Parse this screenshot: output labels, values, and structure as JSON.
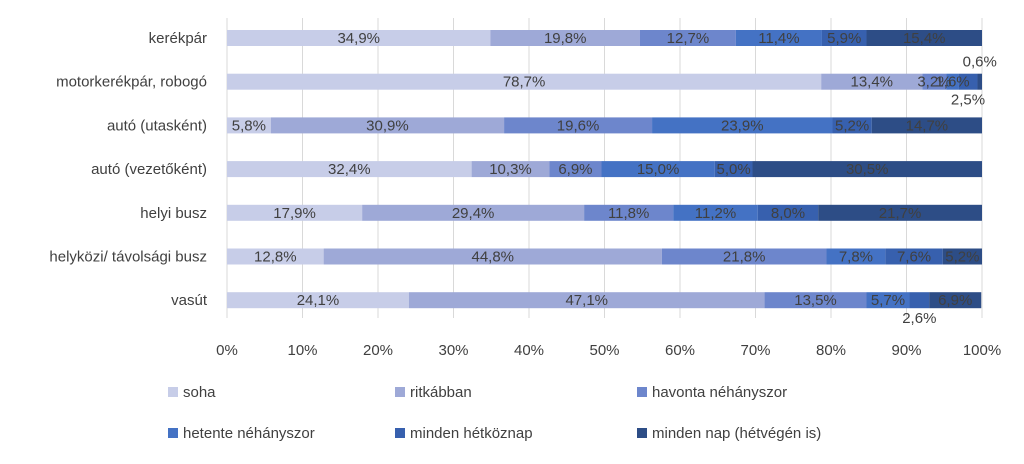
{
  "chart_data": {
    "type": "bar",
    "orientation": "horizontal",
    "stacked": "percent",
    "categories": [
      "kerékpár",
      "motorkerékpár, robogó",
      "autó (utasként)",
      "autó (vezetőként)",
      "helyi busz",
      "helyközi/ távolsági busz",
      "vasút"
    ],
    "series": [
      {
        "name": "soha",
        "color": "#c7cde8",
        "values": [
          34.9,
          78.7,
          5.8,
          32.4,
          17.9,
          12.8,
          24.1
        ],
        "labels": [
          "34,9%",
          "78,7%",
          "5,8%",
          "32,4%",
          "17,9%",
          "12,8%",
          "24,1%"
        ]
      },
      {
        "name": "ritkábban",
        "color": "#9ea9d7",
        "values": [
          19.8,
          13.4,
          30.9,
          10.3,
          29.4,
          44.8,
          47.1
        ],
        "labels": [
          "19,8%",
          "13,4%",
          "30,9%",
          "10,3%",
          "29,4%",
          "44,8%",
          "47,1%"
        ]
      },
      {
        "name": "havonta néhányszor",
        "color": "#6d86cc",
        "values": [
          12.7,
          3.2,
          19.6,
          6.9,
          11.8,
          21.8,
          13.5
        ],
        "labels": [
          "12,7%",
          "3,2%",
          "19,6%",
          "6,9%",
          "11,8%",
          "21,8%",
          "13,5%"
        ]
      },
      {
        "name": "hetente néhányszor",
        "color": "#4472c4",
        "values": [
          11.4,
          1.6,
          23.9,
          15.0,
          11.2,
          7.8,
          5.7
        ],
        "labels": [
          "11,4%",
          "1,6%",
          "23,9%",
          "15,0%",
          "11,2%",
          "7,8%",
          "5,7%"
        ]
      },
      {
        "name": "minden hétköznap",
        "color": "#3760ae",
        "values": [
          5.9,
          2.5,
          5.2,
          5.0,
          8.0,
          7.6,
          2.6
        ],
        "labels": [
          "5,9%",
          "2,5%",
          "5,2%",
          "5,0%",
          "8,0%",
          "7,6%",
          "2,6%"
        ]
      },
      {
        "name": "minden nap (hétvégén is)",
        "color": "#2d4d86",
        "values": [
          15.4,
          0.6,
          14.7,
          30.5,
          21.7,
          5.2,
          6.9
        ],
        "labels": [
          "15,4%",
          "0,6%",
          "14,7%",
          "30,5%",
          "21,7%",
          "5,2%",
          "6,9%"
        ]
      }
    ],
    "outside_labels": [
      {
        "category_index": 1,
        "series_index": 5,
        "text": "0,6%",
        "position": "above"
      },
      {
        "category_index": 1,
        "series_index": 4,
        "text": "2,5%",
        "position": "below"
      },
      {
        "category_index": 6,
        "series_index": 4,
        "text": "2,6%",
        "position": "below"
      }
    ],
    "x_ticks": [
      "0%",
      "10%",
      "20%",
      "30%",
      "40%",
      "50%",
      "60%",
      "70%",
      "80%",
      "90%",
      "100%"
    ],
    "xlim": [
      0,
      100
    ],
    "title": "",
    "xlabel": "",
    "ylabel": "",
    "grid": true,
    "legend_position": "bottom",
    "colors": {
      "label_text": "#404040",
      "gridline": "#d9d9d9",
      "background": "#ffffff"
    }
  }
}
